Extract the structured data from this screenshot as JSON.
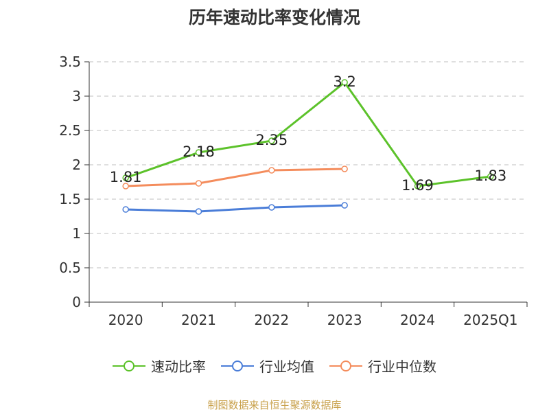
{
  "title": "历年速动比率变化情况",
  "source": "制图数据来自恒生聚源数据库",
  "chart_data": {
    "type": "line",
    "categories": [
      "2020",
      "2021",
      "2022",
      "2023",
      "2024",
      "2025Q1"
    ],
    "ylim": [
      0,
      3.5
    ],
    "yticks": [
      "0",
      "0.5",
      "1",
      "1.5",
      "2",
      "2.5",
      "3",
      "3.5"
    ],
    "grid": true,
    "legend_position": "bottom",
    "series": [
      {
        "name": "速动比率",
        "color": "#5cc22a",
        "values": [
          1.81,
          2.18,
          2.35,
          3.2,
          1.69,
          1.83
        ],
        "labels": [
          "1.81",
          "2.18",
          "2.35",
          "3.2",
          "1.69",
          "1.83"
        ]
      },
      {
        "name": "行业均值",
        "color": "#4a7dd8",
        "values": [
          1.35,
          1.32,
          1.38,
          1.41,
          null,
          null
        ]
      },
      {
        "name": "行业中位数",
        "color": "#f48c5c",
        "values": [
          1.69,
          1.73,
          1.92,
          1.94,
          null,
          null
        ]
      }
    ]
  }
}
